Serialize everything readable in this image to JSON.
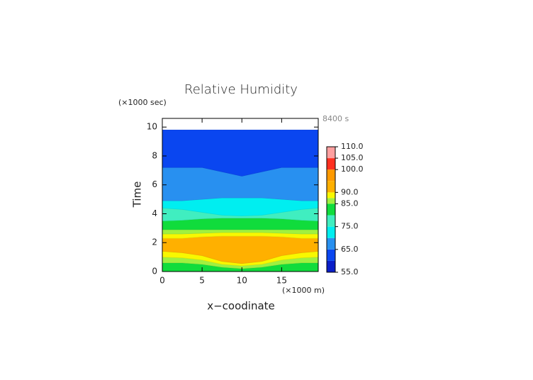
{
  "chart_data": {
    "type": "contour",
    "title": "Relative Humidity",
    "x_label": "x−coodinate",
    "x_unit": "(×1000 m)",
    "y_label": "Time",
    "y_unit": "(×1000 sec)",
    "annotation": "8400 s",
    "xlim": [
      0,
      19.6
    ],
    "ylim": [
      0,
      10.6
    ],
    "xticks": [
      0,
      5,
      10,
      15
    ],
    "yticks": [
      0,
      2,
      4,
      6,
      8,
      10
    ],
    "x": [
      0,
      2.5,
      5,
      7.5,
      10,
      12.5,
      15,
      17.5,
      19.6
    ],
    "boundaries": [
      [
        0,
        0,
        0,
        0,
        0,
        0,
        0,
        0,
        0
      ],
      [
        0.6,
        0.6,
        0.5,
        0.3,
        0.2,
        0.3,
        0.5,
        0.6,
        0.6
      ],
      [
        1.0,
        0.95,
        0.8,
        0.5,
        0.4,
        0.5,
        0.8,
        0.95,
        1.0
      ],
      [
        1.4,
        1.3,
        1.1,
        0.7,
        0.55,
        0.7,
        1.1,
        1.3,
        1.4
      ],
      [
        2.3,
        2.3,
        2.4,
        2.45,
        2.45,
        2.45,
        2.4,
        2.3,
        2.3
      ],
      [
        2.6,
        2.6,
        2.65,
        2.7,
        2.7,
        2.7,
        2.65,
        2.6,
        2.6
      ],
      [
        2.9,
        2.9,
        2.9,
        2.9,
        2.9,
        2.9,
        2.9,
        2.9,
        2.9
      ],
      [
        3.5,
        3.55,
        3.65,
        3.7,
        3.7,
        3.7,
        3.65,
        3.55,
        3.5
      ],
      [
        4.4,
        4.3,
        4.1,
        3.9,
        3.85,
        3.9,
        4.1,
        4.3,
        4.4
      ],
      [
        4.9,
        4.9,
        5.0,
        5.1,
        5.1,
        5.1,
        5.0,
        4.9,
        4.9
      ],
      [
        7.2,
        7.2,
        7.2,
        6.9,
        6.6,
        6.9,
        7.2,
        7.2,
        7.2
      ],
      [
        9.8,
        9.8,
        9.8,
        9.8,
        9.8,
        9.8,
        9.8,
        9.8,
        9.8
      ]
    ],
    "band_values": [
      82.5,
      86,
      88,
      95,
      88,
      86,
      82.5,
      77.5,
      72.5,
      67.5,
      62.5
    ],
    "colorbar": {
      "levels": [
        55,
        60,
        65,
        70,
        75,
        80,
        85,
        87.5,
        90,
        95,
        100,
        105,
        110
      ],
      "colors": [
        "#0a1ec8",
        "#0a46f0",
        "#2890f0",
        "#00eef0",
        "#40eec0",
        "#10dc3c",
        "#a0f040",
        "#f8f800",
        "#ffb000",
        "#ff9a00",
        "#ff3020",
        "#ffa0a0"
      ],
      "ticks": [
        {
          "value": 55,
          "label": "55.0"
        },
        {
          "value": 65,
          "label": "65.0"
        },
        {
          "value": 75,
          "label": "75.0"
        },
        {
          "value": 85,
          "label": "85.0"
        },
        {
          "value": 90,
          "label": "90.0"
        },
        {
          "value": 100,
          "label": "100.0"
        },
        {
          "value": 105,
          "label": "105.0"
        },
        {
          "value": 110,
          "label": "110.0"
        }
      ]
    }
  }
}
